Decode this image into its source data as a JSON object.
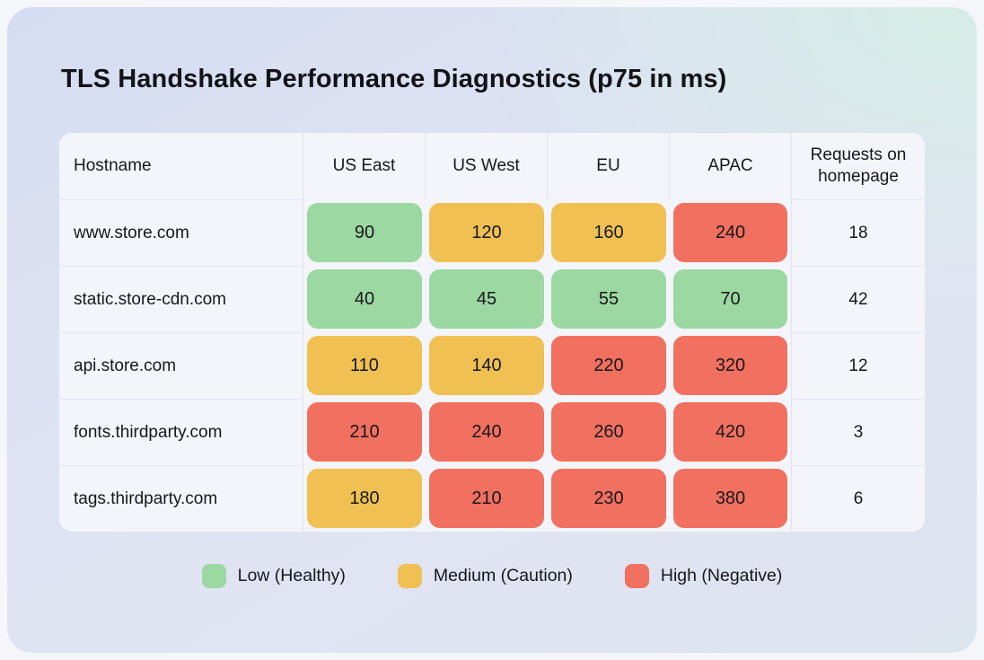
{
  "title": "TLS Handshake Performance Diagnostics (p75 in ms)",
  "table": {
    "columns": [
      "Hostname",
      "US East",
      "US West",
      "EU",
      "APAC",
      "Requests on homepage"
    ],
    "rows": [
      {
        "hostname": "www.store.com",
        "values": [
          90,
          120,
          160,
          240
        ],
        "levels": [
          "low",
          "medium",
          "medium",
          "high"
        ],
        "requests": 18
      },
      {
        "hostname": "static.store-cdn.com",
        "values": [
          40,
          45,
          55,
          70
        ],
        "levels": [
          "low",
          "low",
          "low",
          "low"
        ],
        "requests": 42
      },
      {
        "hostname": "api.store.com",
        "values": [
          110,
          140,
          220,
          320
        ],
        "levels": [
          "medium",
          "medium",
          "high",
          "high"
        ],
        "requests": 12
      },
      {
        "hostname": "fonts.thirdparty.com",
        "values": [
          210,
          240,
          260,
          420
        ],
        "levels": [
          "high",
          "high",
          "high",
          "high"
        ],
        "requests": 3
      },
      {
        "hostname": "tags.thirdparty.com",
        "values": [
          180,
          210,
          230,
          380
        ],
        "levels": [
          "medium",
          "high",
          "high",
          "high"
        ],
        "requests": 6
      }
    ]
  },
  "legend": [
    {
      "label": "Low (Healthy)",
      "level": "low"
    },
    {
      "label": "Medium (Caution)",
      "level": "medium"
    },
    {
      "label": "High (Negative)",
      "level": "high"
    }
  ],
  "colors": {
    "low": "#9cd8a1",
    "medium": "#f0c052",
    "high": "#f1705f"
  },
  "chart_data": {
    "type": "heatmap",
    "title": "TLS Handshake Performance Diagnostics (p75 in ms)",
    "unit": "ms (p75)",
    "row_label": "Hostname",
    "columns": [
      "US East",
      "US West",
      "EU",
      "APAC"
    ],
    "rows": [
      "www.store.com",
      "static.store-cdn.com",
      "api.store.com",
      "fonts.thirdparty.com",
      "tags.thirdparty.com"
    ],
    "values": [
      [
        90,
        120,
        160,
        240
      ],
      [
        40,
        45,
        55,
        70
      ],
      [
        110,
        140,
        220,
        320
      ],
      [
        210,
        240,
        260,
        420
      ],
      [
        180,
        210,
        230,
        380
      ]
    ],
    "requests_on_homepage": [
      18,
      42,
      12,
      3,
      6
    ],
    "severity_levels": [
      [
        "low",
        "medium",
        "medium",
        "high"
      ],
      [
        "low",
        "low",
        "low",
        "low"
      ],
      [
        "medium",
        "medium",
        "high",
        "high"
      ],
      [
        "high",
        "high",
        "high",
        "high"
      ],
      [
        "medium",
        "high",
        "high",
        "high"
      ]
    ],
    "legend_entries": [
      "Low (Healthy)",
      "Medium (Caution)",
      "High (Negative)"
    ],
    "legend_position": "bottom"
  }
}
